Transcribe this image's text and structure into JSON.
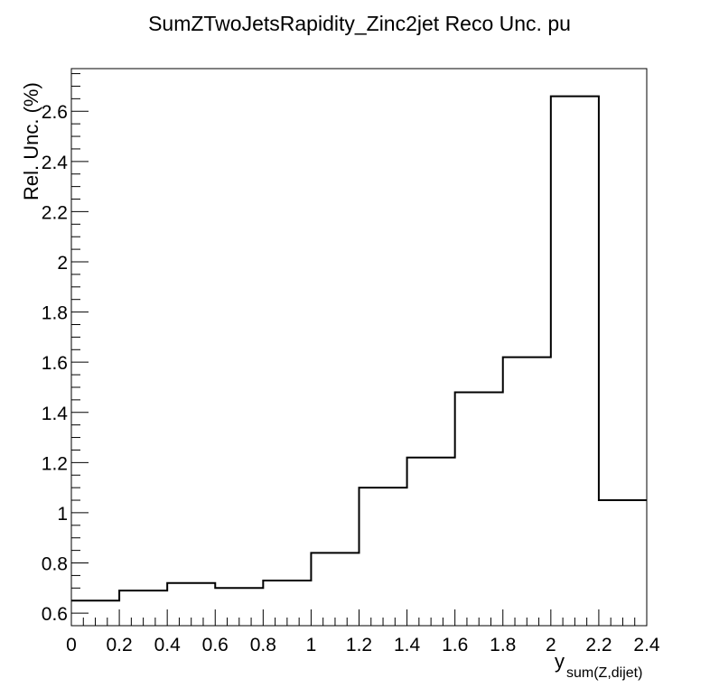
{
  "chart_data": {
    "type": "bar",
    "title": "SumZTwoJetsRapidity_Zinc2jet Reco Unc. pu",
    "xlabel": "y",
    "xlabel_subscript": "sum(Z,dijet)",
    "ylabel": "Rel. Unc. (%)",
    "xlim": [
      0,
      2.4
    ],
    "ylim": [
      0.55,
      2.77
    ],
    "x_ticks": [
      "0",
      "0.2",
      "0.4",
      "0.6",
      "0.8",
      "1",
      "1.2",
      "1.4",
      "1.6",
      "1.8",
      "2",
      "2.2",
      "2.4"
    ],
    "y_ticks": [
      "0.6",
      "0.8",
      "1",
      "1.2",
      "1.4",
      "1.6",
      "1.8",
      "2",
      "2.2",
      "2.4",
      "2.6"
    ],
    "bin_edges": [
      0,
      0.2,
      0.4,
      0.6,
      0.8,
      1.0,
      1.2,
      1.4,
      1.6,
      1.8,
      2.0,
      2.2,
      2.4
    ],
    "values": [
      0.65,
      0.69,
      0.72,
      0.7,
      0.73,
      0.84,
      1.1,
      1.22,
      1.48,
      1.62,
      2.66,
      1.05
    ],
    "grid": false,
    "line_color": "#000000"
  }
}
